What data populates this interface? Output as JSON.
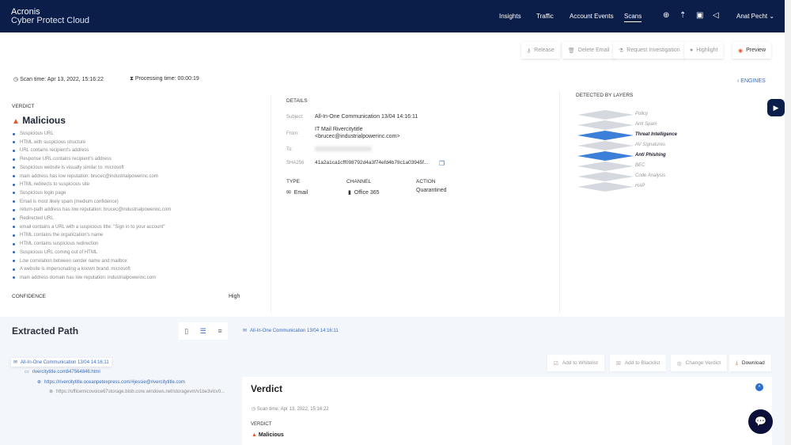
{
  "header": {
    "brand_line1": "Acronis",
    "brand_line2": "Cyber Protect Cloud",
    "nav": [
      "Insights",
      "Traffic",
      "Account Events",
      "Scans"
    ],
    "active_nav": "Scans",
    "user": "Anat Pecht",
    "bg_color": "#0b1e4a"
  },
  "toolbar": {
    "release": "Release",
    "delete_email": "Delete Email",
    "request_investigation": "Request Investigation",
    "highlight": "Highlight",
    "preview": "Preview"
  },
  "meta": {
    "scan_time": "Scan time: Apr 13, 2022, 15:16:22",
    "processing_time": "Processing time: 00:00:19",
    "engines": "ENGINES"
  },
  "verdict": {
    "label": "VERDICT",
    "value": "Malicious",
    "reasons": [
      "Suspicious URL",
      "HTML with suspicious structure",
      "URL contains recipient's address",
      "Response URL contains recipient's address",
      "Suspicious website is visually similar to: microsoft",
      "main address has low reputation: brucec@industrialpowerinc.com",
      "HTML redirects to suspicious site",
      "Suspicious login page",
      "Email is most likely spam (medium confidence)",
      "return-path address has low reputation: brucec@industrialpowerinc.com",
      "Redirected URL",
      "email contains a URL with a suspicious title: \"Sign in to your account\"",
      "HTML contains the organization's name",
      "HTML contains suspicious redirection",
      "Suspicious URL coming out of HTML",
      "Low correlation between sender name and mailbox",
      "A website is impersonating a known brand: microsoft",
      "main address domain has low reputation: industrialpowerinc.com"
    ],
    "confidence_label": "CONFIDENCE",
    "confidence": "High",
    "accent": "#e8562a"
  },
  "details": {
    "label": "DETAILS",
    "subject_key": "Subject:",
    "subject": "All-In-One Communication 13/04 14:16:11",
    "from_key": "From:",
    "from_name": "IT Mail Rivercitytitle",
    "from_email": "<brucec@industrialpowerinc.com>",
    "to_key": "To:",
    "sha_key": "SHA256",
    "sha": "41a2a1ca1cff098792d4a3f74efd4b78c1a03945f...",
    "type_label": "TYPE",
    "type": "Email",
    "channel_label": "CHANNEL",
    "channel": "Office 365",
    "action_label": "ACTION",
    "action": "Quarantined"
  },
  "layers": {
    "label": "DETECTED BY LAYERS",
    "items": [
      {
        "name": "Policy",
        "detected": false
      },
      {
        "name": "Anti Spam",
        "detected": false
      },
      {
        "name": "Threat Intelligence",
        "detected": true
      },
      {
        "name": "AV Signatures",
        "detected": false
      },
      {
        "name": "Anti Phishing",
        "detected": true
      },
      {
        "name": "BEC",
        "detected": false
      },
      {
        "name": "Code Analysis",
        "detected": false
      },
      {
        "name": "HAP",
        "detected": false
      }
    ]
  },
  "extracted": {
    "title": "Extracted Path",
    "selected": "All-In-One Communication 13/04 14:16:11",
    "tree": [
      "All-In-One Communication 13/04 14:16:11",
      "rivercitytitle.com847564846.html",
      "https://rivercitytitle.oceanpetexpress.com/#jessie@rivercitytitle.com",
      "https://officemicovoice67storage.blob.core.windows.net/storagevm/v1be3vlcv0..."
    ]
  },
  "actions": {
    "whitelist": "Add to Whitelist",
    "blacklist": "Add to Blacklist",
    "change_verdict": "Change Verdict",
    "download": "Download"
  },
  "verdict_panel": {
    "title": "Verdict",
    "scan_time": "Scan time: Apr 13, 2022, 15:16:22",
    "label": "VERDICT",
    "value": "Malicious"
  }
}
